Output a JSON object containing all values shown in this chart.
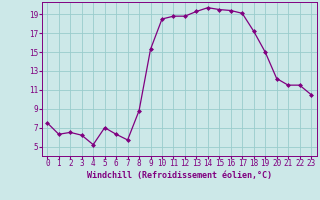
{
  "x": [
    0,
    1,
    2,
    3,
    4,
    5,
    6,
    7,
    8,
    9,
    10,
    11,
    12,
    13,
    14,
    15,
    16,
    17,
    18,
    19,
    20,
    21,
    22,
    23
  ],
  "y": [
    7.5,
    6.3,
    6.5,
    6.2,
    5.2,
    7.0,
    6.3,
    5.7,
    8.8,
    15.3,
    18.5,
    18.8,
    18.8,
    19.3,
    19.7,
    19.5,
    19.4,
    19.1,
    17.2,
    15.0,
    12.2,
    11.5,
    11.5,
    10.5
  ],
  "xlabel": "Windchill (Refroidissement éolien,°C)",
  "ylim": [
    4,
    20
  ],
  "xlim_min": -0.5,
  "xlim_max": 23.5,
  "yticks": [
    5,
    7,
    9,
    11,
    13,
    15,
    17,
    19
  ],
  "xticks": [
    0,
    1,
    2,
    3,
    4,
    5,
    6,
    7,
    8,
    9,
    10,
    11,
    12,
    13,
    14,
    15,
    16,
    17,
    18,
    19,
    20,
    21,
    22,
    23
  ],
  "line_color": "#800080",
  "marker_color": "#800080",
  "bg_color": "#cce8e8",
  "grid_color": "#99cccc",
  "tick_fontsize": 5.5,
  "xlabel_fontsize": 6.0,
  "linewidth": 0.9,
  "markersize": 2.0
}
